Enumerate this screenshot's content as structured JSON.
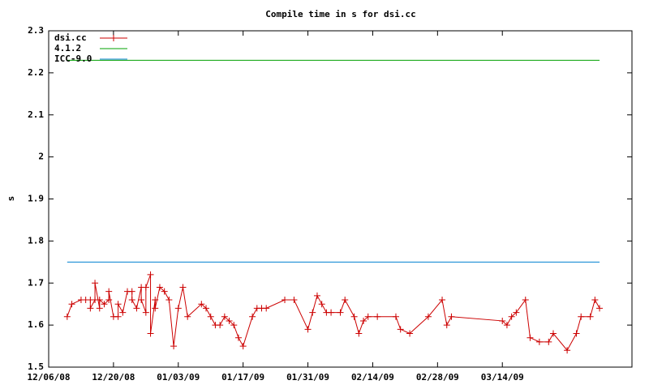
{
  "chart_data": {
    "type": "line",
    "title": "Compile time in s for dsi.cc",
    "ylabel": "s",
    "series": [
      {
        "name": "dsi.cc",
        "color": "#cc0000",
        "marker": "+",
        "x": [
          "2008-12-10",
          "2008-12-11",
          "2008-12-13",
          "2008-12-14",
          "2008-12-15",
          "2008-12-15",
          "2008-12-16",
          "2008-12-16",
          "2008-12-17",
          "2008-12-17",
          "2008-12-18",
          "2008-12-19",
          "2008-12-19",
          "2008-12-20",
          "2008-12-21",
          "2008-12-21",
          "2008-12-22",
          "2008-12-23",
          "2008-12-24",
          "2008-12-24",
          "2008-12-25",
          "2008-12-26",
          "2008-12-26",
          "2008-12-27",
          "2008-12-27",
          "2008-12-28",
          "2008-12-28",
          "2008-12-29",
          "2008-12-29",
          "2008-12-30",
          "2008-12-31",
          "2009-01-01",
          "2009-01-02",
          "2009-01-03",
          "2009-01-04",
          "2009-01-05",
          "2009-01-08",
          "2009-01-09",
          "2009-01-10",
          "2009-01-11",
          "2009-01-12",
          "2009-01-13",
          "2009-01-14",
          "2009-01-15",
          "2009-01-16",
          "2009-01-17",
          "2009-01-19",
          "2009-01-20",
          "2009-01-21",
          "2009-01-22",
          "2009-01-26",
          "2009-01-28",
          "2009-01-31",
          "2009-02-01",
          "2009-02-02",
          "2009-02-03",
          "2009-02-04",
          "2009-02-05",
          "2009-02-07",
          "2009-02-08",
          "2009-02-10",
          "2009-02-11",
          "2009-02-12",
          "2009-02-13",
          "2009-02-15",
          "2009-02-19",
          "2009-02-20",
          "2009-02-22",
          "2009-02-26",
          "2009-03-01",
          "2009-03-02",
          "2009-03-03",
          "2009-03-14",
          "2009-03-15",
          "2009-03-16",
          "2009-03-17",
          "2009-03-19",
          "2009-03-20",
          "2009-03-22",
          "2009-03-24",
          "2009-03-25",
          "2009-03-28",
          "2009-03-30",
          "2009-03-31",
          "2009-04-02",
          "2009-04-03",
          "2009-04-04"
        ],
        "values": [
          1.62,
          1.65,
          1.66,
          1.66,
          1.66,
          1.64,
          1.66,
          1.7,
          1.64,
          1.66,
          1.65,
          1.66,
          1.68,
          1.62,
          1.62,
          1.65,
          1.63,
          1.68,
          1.68,
          1.66,
          1.64,
          1.69,
          1.66,
          1.63,
          1.69,
          1.72,
          1.58,
          1.66,
          1.64,
          1.69,
          1.68,
          1.66,
          1.55,
          1.64,
          1.69,
          1.62,
          1.65,
          1.64,
          1.62,
          1.6,
          1.6,
          1.62,
          1.61,
          1.6,
          1.57,
          1.55,
          1.62,
          1.64,
          1.64,
          1.64,
          1.66,
          1.66,
          1.59,
          1.63,
          1.67,
          1.65,
          1.63,
          1.63,
          1.63,
          1.66,
          1.62,
          1.58,
          1.61,
          1.62,
          1.62,
          1.62,
          1.59,
          1.58,
          1.62,
          1.66,
          1.6,
          1.62,
          1.61,
          1.6,
          1.62,
          1.63,
          1.66,
          1.57,
          1.56,
          1.56,
          1.58,
          1.54,
          1.58,
          1.62,
          1.62,
          1.66,
          1.64
        ]
      },
      {
        "name": "4.1.2",
        "color": "#00a000",
        "x": [
          "2008-12-10",
          "2009-04-04"
        ],
        "values": [
          2.23,
          2.23
        ]
      },
      {
        "name": "ICC-9.0",
        "color": "#0080d0",
        "x": [
          "2008-12-10",
          "2009-04-04"
        ],
        "values": [
          1.75,
          1.75
        ]
      }
    ],
    "xlim": [
      "2008-12-06",
      "2009-04-11"
    ],
    "xticks": [
      {
        "value": "2008-12-06",
        "label": "12/06/08"
      },
      {
        "value": "2008-12-20",
        "label": "12/20/08"
      },
      {
        "value": "2009-01-03",
        "label": "01/03/09"
      },
      {
        "value": "2009-01-17",
        "label": "01/17/09"
      },
      {
        "value": "2009-01-31",
        "label": "01/31/09"
      },
      {
        "value": "2009-02-14",
        "label": "02/14/09"
      },
      {
        "value": "2009-02-28",
        "label": "02/28/09"
      },
      {
        "value": "2009-03-14",
        "label": "03/14/09"
      }
    ],
    "ylim": [
      1.5,
      2.3
    ],
    "yticks": [
      1.5,
      1.6,
      1.7,
      1.8,
      1.9,
      2,
      2.1,
      2.2,
      2.3
    ],
    "legend": "top-left",
    "grid": false
  }
}
